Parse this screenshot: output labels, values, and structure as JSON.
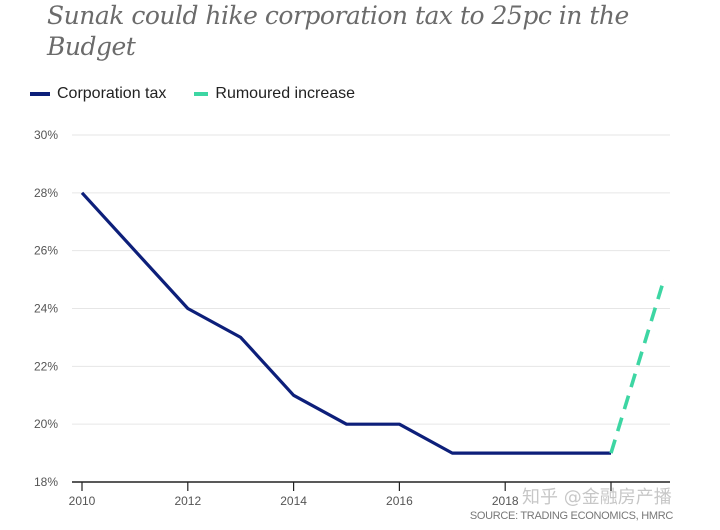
{
  "chart_data": {
    "type": "line",
    "title": "Sunak could hike corporation tax to 25pc in the Budget",
    "xlabel": "",
    "ylabel": "",
    "x": [
      2010,
      2011,
      2012,
      2013,
      2014,
      2015,
      2016,
      2017,
      2018,
      2019,
      2020
    ],
    "series": [
      {
        "name": "Corporation tax",
        "color": "#0d1f7a",
        "style": "solid",
        "points": [
          [
            2010,
            28
          ],
          [
            2011,
            26
          ],
          [
            2012,
            24
          ],
          [
            2013,
            23
          ],
          [
            2014,
            21
          ],
          [
            2015,
            20
          ],
          [
            2016,
            20
          ],
          [
            2017,
            19
          ],
          [
            2018,
            19
          ],
          [
            2019,
            19
          ],
          [
            2020,
            19
          ]
        ]
      },
      {
        "name": "Rumoured increase",
        "color": "#3dd6a3",
        "style": "dashed",
        "points": [
          [
            2020,
            19
          ],
          [
            2021,
            25
          ]
        ]
      }
    ],
    "xlim": [
      2010,
      2021.1
    ],
    "ylim": [
      18,
      30
    ],
    "x_ticks": [
      2010,
      2012,
      2014,
      2016,
      2018,
      2020
    ],
    "x_tick_labels": [
      "2010",
      "2012",
      "2014",
      "2016",
      "2018",
      ""
    ],
    "y_ticks": [
      18,
      20,
      22,
      24,
      26,
      28,
      30
    ],
    "y_tick_labels": [
      "18%",
      "20%",
      "22%",
      "24%",
      "26%",
      "28%",
      "30%"
    ],
    "grid": true,
    "legend": "top-left",
    "source": "SOURCE: TRADING ECONOMICS, HMRC"
  },
  "header": {
    "title": "Sunak could hike corporation tax to 25pc in the Budget"
  },
  "legend": {
    "items": [
      {
        "label": "Corporation tax",
        "color": "#0d1f7a"
      },
      {
        "label": "Rumoured increase",
        "color": "#3dd6a3"
      }
    ]
  },
  "watermark": "知乎 @金融房产播"
}
